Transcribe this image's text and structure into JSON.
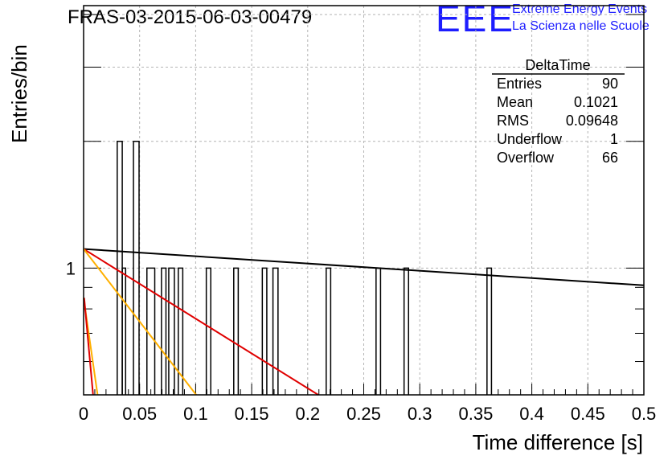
{
  "header": {
    "title": "FRAS-03-2015-06-03-00479",
    "logo_text": "EEE",
    "logo_line1": "Extreme Energy Events",
    "logo_line2": "La Scienza nelle Scuole",
    "logo_color": "#1d1dff"
  },
  "stats": {
    "name": "DeltaTime",
    "rows": [
      {
        "label": "Entries",
        "value": "90"
      },
      {
        "label": "Mean",
        "value": "0.1021"
      },
      {
        "label": "RMS",
        "value": "0.09648"
      },
      {
        "label": "Underflow",
        "value": "1"
      },
      {
        "label": "Overflow",
        "value": "66"
      }
    ]
  },
  "chart_data": {
    "type": "histogram",
    "xlabel": "Time difference [s]",
    "ylabel": "Entries/bin",
    "xlim": [
      0,
      0.5
    ],
    "x_ticks": [
      "0",
      "0.05",
      "0.1",
      "0.15",
      "0.2",
      "0.25",
      "0.3",
      "0.35",
      "0.4",
      "0.45",
      "0.5"
    ],
    "y_tick_labels": [
      "1"
    ],
    "y_scale": "log",
    "ylim": [
      0.5,
      4.2
    ],
    "grid": true,
    "bins": [
      {
        "x0": 0.03,
        "x1": 0.0345,
        "count": 2
      },
      {
        "x0": 0.0345,
        "x1": 0.0375,
        "count": 1
      },
      {
        "x0": 0.0445,
        "x1": 0.0495,
        "count": 2
      },
      {
        "x0": 0.0565,
        "x1": 0.0635,
        "count": 1
      },
      {
        "x0": 0.0695,
        "x1": 0.0735,
        "count": 1
      },
      {
        "x0": 0.076,
        "x1": 0.081,
        "count": 1
      },
      {
        "x0": 0.0845,
        "x1": 0.0885,
        "count": 1
      },
      {
        "x0": 0.1095,
        "x1": 0.1135,
        "count": 1
      },
      {
        "x0": 0.134,
        "x1": 0.138,
        "count": 1
      },
      {
        "x0": 0.1595,
        "x1": 0.1635,
        "count": 1
      },
      {
        "x0": 0.169,
        "x1": 0.1735,
        "count": 1
      },
      {
        "x0": 0.2165,
        "x1": 0.2205,
        "count": 1
      },
      {
        "x0": 0.261,
        "x1": 0.265,
        "count": 1
      },
      {
        "x0": 0.286,
        "x1": 0.29,
        "count": 1
      },
      {
        "x0": 0.36,
        "x1": 0.364,
        "count": 1
      }
    ],
    "fit_lines": [
      {
        "color": "#000000",
        "points": [
          [
            0,
            1.11
          ],
          [
            0.5,
            0.91
          ]
        ]
      },
      {
        "color": "#e00000",
        "points": [
          [
            0,
            1.11
          ],
          [
            0.2095,
            0.5
          ]
        ]
      },
      {
        "color": "#ffb000",
        "points": [
          [
            0,
            1.11
          ],
          [
            0.1005,
            0.5
          ]
        ]
      },
      {
        "color": "#ffb000",
        "points": [
          [
            0,
            0.85
          ],
          [
            0.0125,
            0.5
          ]
        ]
      },
      {
        "color": "#e00000",
        "points": [
          [
            0.0005,
            0.85
          ],
          [
            0.0085,
            0.5
          ]
        ]
      }
    ]
  }
}
